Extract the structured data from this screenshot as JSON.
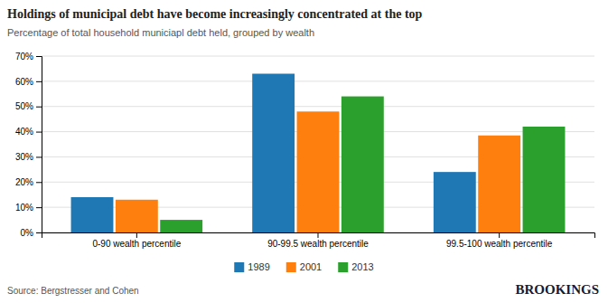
{
  "chart_data": {
    "type": "bar",
    "title": "Holdings of municipal debt have become increasingly concentrated at the top",
    "subtitle": "Percentage of total household municiapl debt held, grouped by wealth",
    "annotations": [
      "Source: Bergstresser and Cohen",
      "BROOKINGS"
    ],
    "categories": [
      "0-90 wealth percentile",
      "90-99.5 wealth percentile",
      "99.5-100 wealth percentile"
    ],
    "series": [
      {
        "name": "1989",
        "values": [
          0.14,
          0.63,
          0.24
        ]
      },
      {
        "name": "2001",
        "values": [
          0.13,
          0.48,
          0.385
        ]
      },
      {
        "name": "2013",
        "values": [
          0.05,
          0.54,
          0.42
        ]
      }
    ],
    "ylim": [
      0,
      0.7
    ],
    "yticks": [
      {
        "value": 0,
        "label": "0%"
      },
      {
        "value": 0.1,
        "label": "10%"
      },
      {
        "value": 0.2,
        "label": "20%"
      },
      {
        "value": 0.3,
        "label": "30%"
      },
      {
        "value": 0.4,
        "label": "40%"
      },
      {
        "value": 0.5,
        "label": "50%"
      },
      {
        "value": 0.6,
        "label": "60%"
      },
      {
        "value": 0.7,
        "label": "70%"
      }
    ],
    "grid": true,
    "legend": "bottom"
  }
}
